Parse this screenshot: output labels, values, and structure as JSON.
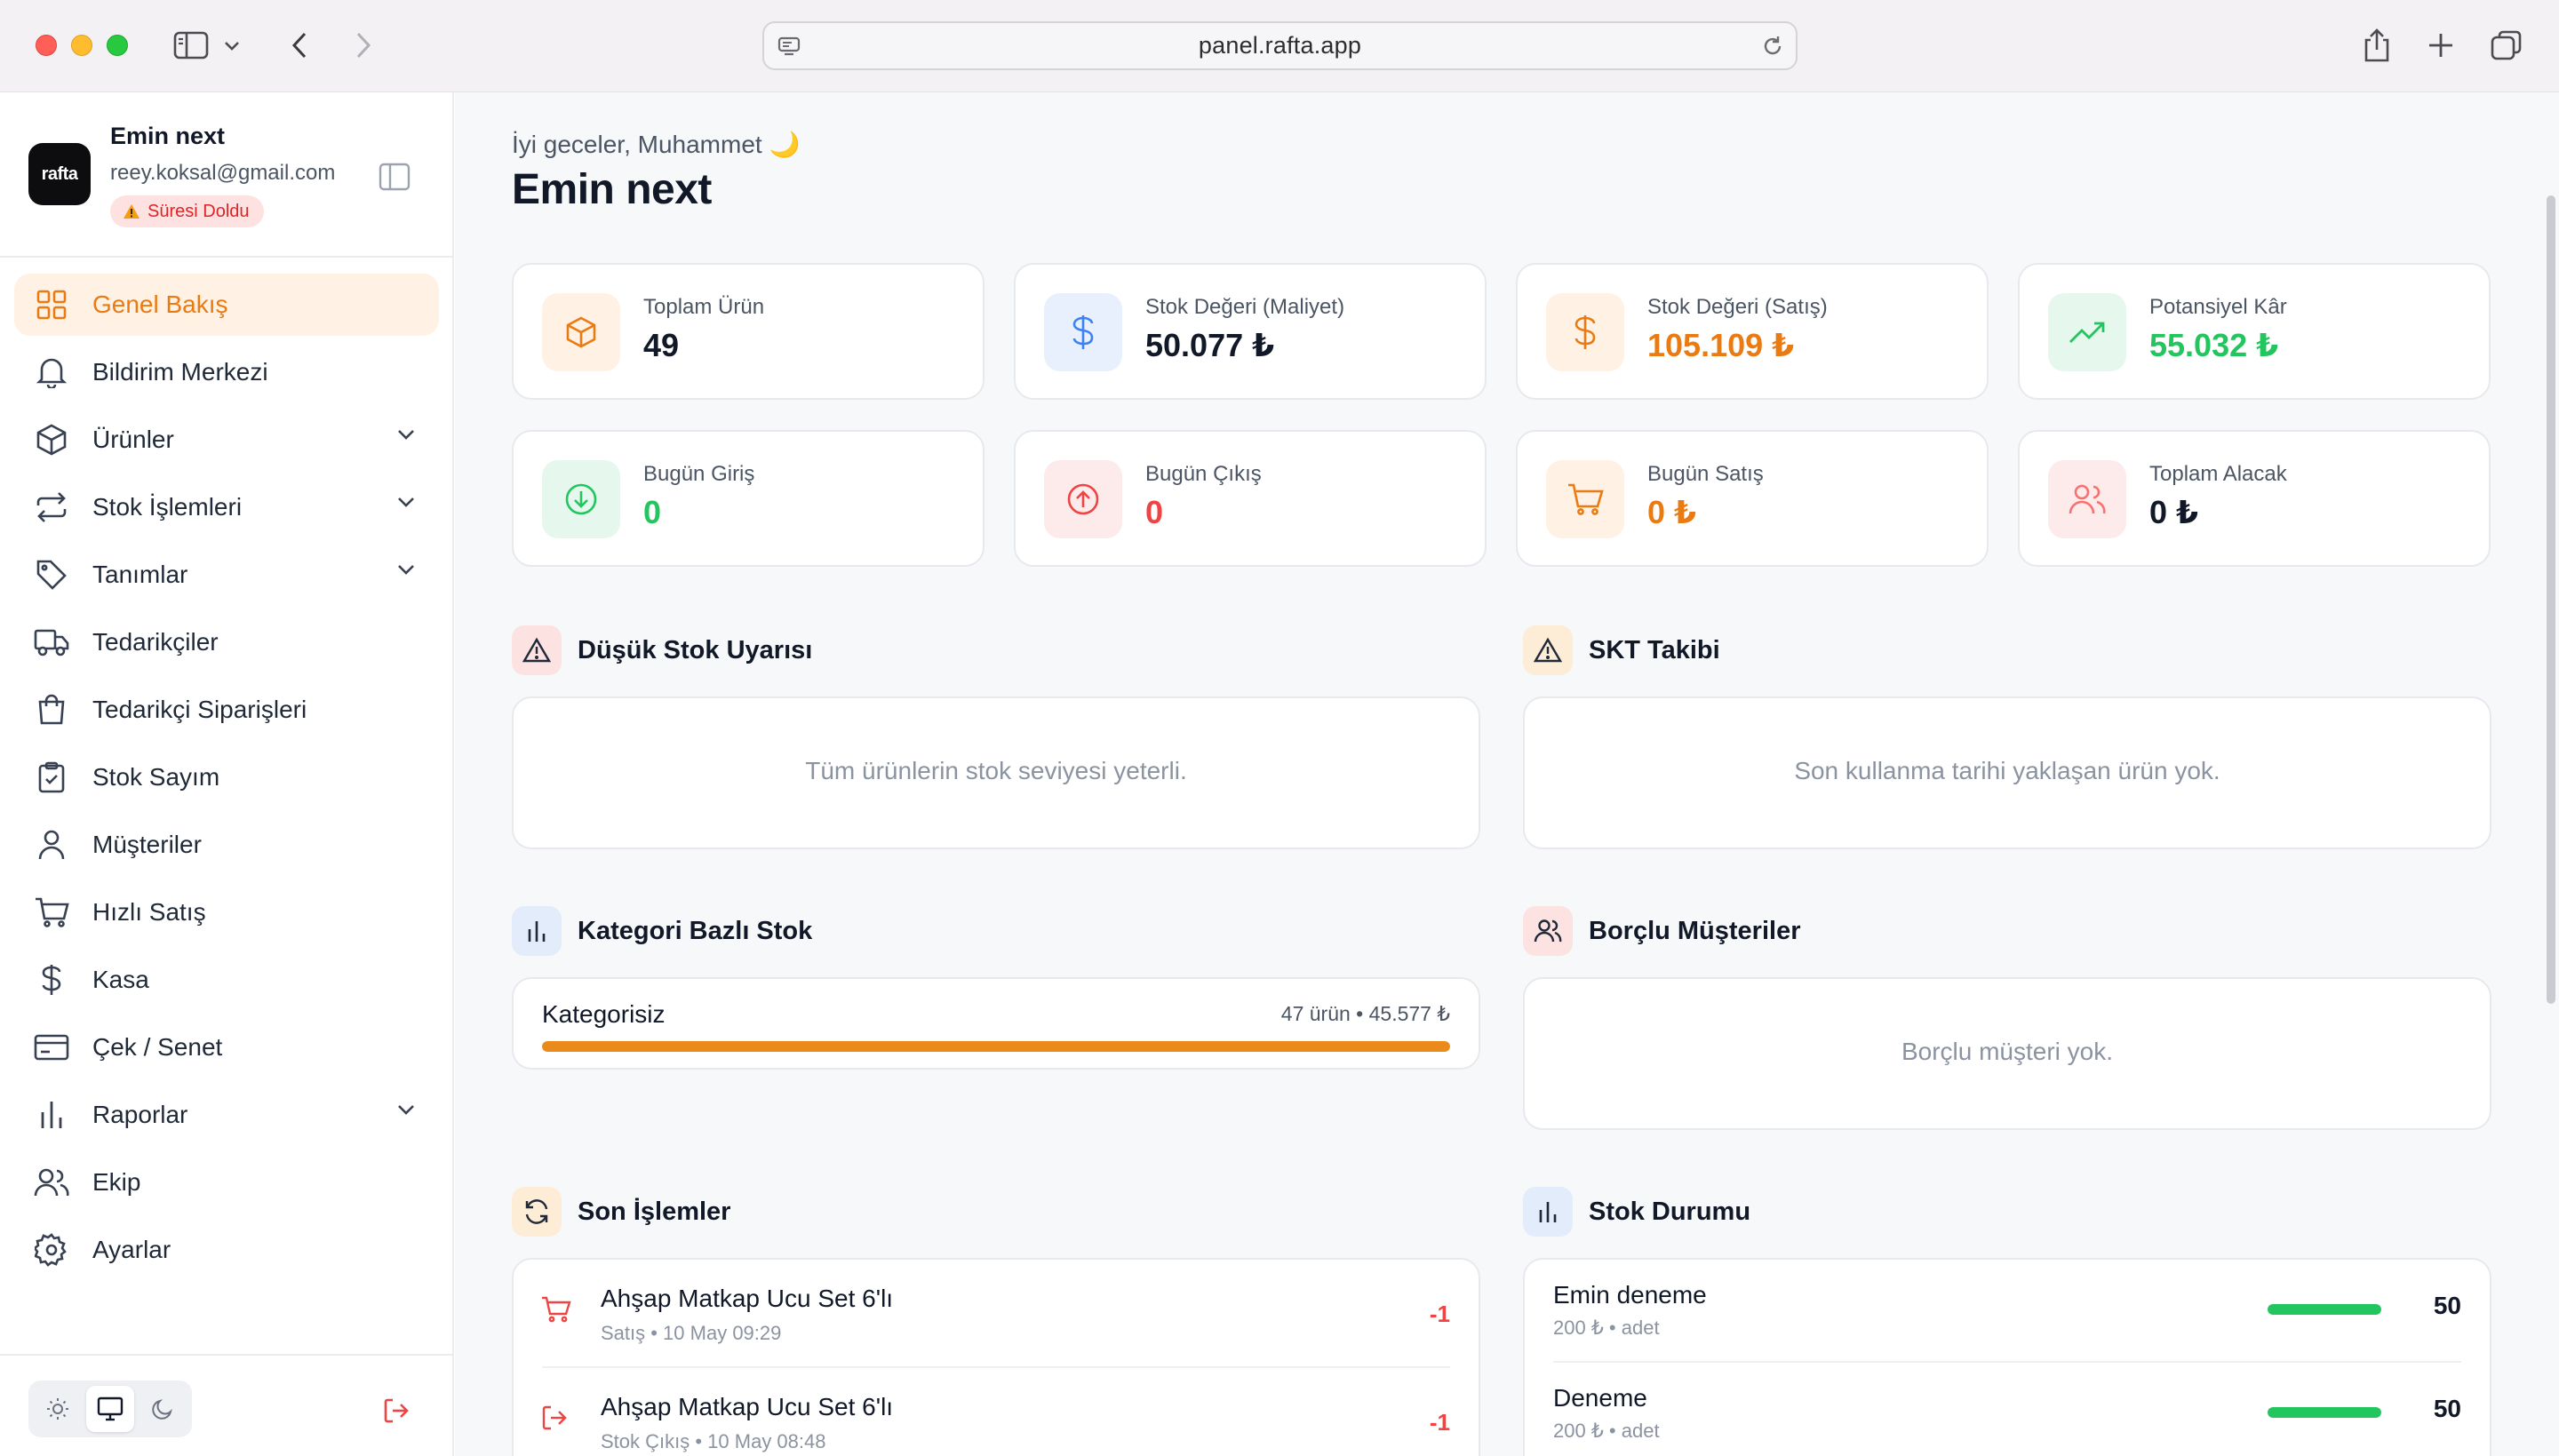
{
  "browser": {
    "url": "panel.rafta.app"
  },
  "account": {
    "logo_text": "rafta",
    "name": "Emin next",
    "email": "reey.koksal@gmail.com",
    "badge": "Süresi Doldu"
  },
  "nav": {
    "items": [
      {
        "label": "Genel Bakış",
        "icon": "grid-icon",
        "active": true
      },
      {
        "label": "Bildirim Merkezi",
        "icon": "bell-icon"
      },
      {
        "label": "Ürünler",
        "icon": "box-icon",
        "has_children": true
      },
      {
        "label": "Stok İşlemleri",
        "icon": "arrows-icon",
        "has_children": true
      },
      {
        "label": "Tanımlar",
        "icon": "tag-icon",
        "has_children": true
      },
      {
        "label": "Tedarikçiler",
        "icon": "truck-icon"
      },
      {
        "label": "Tedarikçi Siparişleri",
        "icon": "bag-icon"
      },
      {
        "label": "Stok Sayım",
        "icon": "clipboard-icon"
      },
      {
        "label": "Müşteriler",
        "icon": "user-icon"
      },
      {
        "label": "Hızlı Satış",
        "icon": "cart-icon"
      },
      {
        "label": "Kasa",
        "icon": "dollar-icon"
      },
      {
        "label": "Çek / Senet",
        "icon": "card-icon"
      },
      {
        "label": "Raporlar",
        "icon": "bar-chart-icon",
        "has_children": true
      },
      {
        "label": "Ekip",
        "icon": "users-icon"
      },
      {
        "label": "Ayarlar",
        "icon": "gear-icon"
      }
    ]
  },
  "theme": {
    "selected": "system"
  },
  "header": {
    "greeting": "İyi geceler, Muhammet 🌙",
    "title": "Emin next"
  },
  "stats": [
    {
      "label": "Toplam Ürün",
      "value": "49",
      "value_color": "#111827"
    },
    {
      "label": "Stok Değeri (Maliyet)",
      "value": "50.077 ₺",
      "value_color": "#111827"
    },
    {
      "label": "Stok Değeri (Satış)",
      "value": "105.109 ₺",
      "value_color": "#ea7a12"
    },
    {
      "label": "Potansiyel Kâr",
      "value": "55.032 ₺",
      "value_color": "#22c55e"
    },
    {
      "label": "Bugün Giriş",
      "value": "0",
      "value_color": "#22c55e"
    },
    {
      "label": "Bugün Çıkış",
      "value": "0",
      "value_color": "#ef4444"
    },
    {
      "label": "Bugün Satış",
      "value": "0 ₺",
      "value_color": "#ea7a12"
    },
    {
      "label": "Toplam Alacak",
      "value": "0 ₺",
      "value_color": "#111827"
    }
  ],
  "sections": {
    "low_stock": {
      "title": "Düşük Stok Uyarısı",
      "empty": "Tüm ürünlerin stok seviyesi yeterli."
    },
    "expiry": {
      "title": "SKT Takibi",
      "empty": "Son kullanma tarihi yaklaşan ürün yok."
    },
    "category_stock": {
      "title": "Kategori Bazlı Stok",
      "rows": [
        {
          "label": "Kategorisiz",
          "meta": "47 ürün • 45.577 ₺",
          "fill_fraction": 1.0
        }
      ]
    },
    "debtors": {
      "title": "Borçlu Müşteriler",
      "empty": "Borçlu müşteri yok."
    },
    "recent": {
      "title": "Son İşlemler",
      "rows": [
        {
          "name": "Ahşap Matkap Ucu Set 6'lı",
          "meta": "Satış • 10 May 09:29",
          "qty": "-1",
          "icon": "cart-icon"
        },
        {
          "name": "Ahşap Matkap Ucu Set 6'lı",
          "meta": "Stok Çıkış • 10 May 08:48",
          "qty": "-1",
          "icon": "logout-icon"
        }
      ]
    },
    "stock_status": {
      "title": "Stok Durumu",
      "rows": [
        {
          "name": "Emin deneme",
          "meta": "200 ₺ • adet",
          "value": "50",
          "fill_fraction": 1.0
        },
        {
          "name": "Deneme",
          "meta": "200 ₺ • adet",
          "value": "50",
          "fill_fraction": 1.0
        }
      ]
    }
  },
  "colors": {
    "accent": "#ea7a12",
    "success": "#22c55e",
    "danger": "#ef4444"
  }
}
